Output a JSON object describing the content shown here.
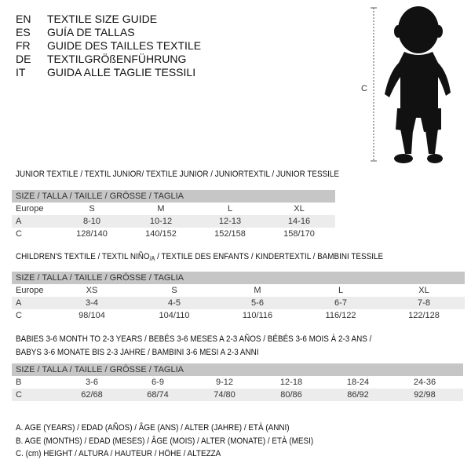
{
  "languages": [
    {
      "code": "EN",
      "name": "TEXTILE SIZE GUIDE"
    },
    {
      "code": "ES",
      "name": "GUÍA DE TALLAS"
    },
    {
      "code": "FR",
      "name": "GUIDE DES TAILLES TEXTILE"
    },
    {
      "code": "DE",
      "name": "TEXTILGRÖßENFÜHRUNG"
    },
    {
      "code": "IT",
      "name": "GUIDA ALLE TAGLIE TESSILI"
    }
  ],
  "figure": {
    "measure_label": "C",
    "icon": "toddler-silhouette"
  },
  "size_header": "SIZE / TALLA / TAILLE / GRÖSSE / TAGLIA",
  "junior": {
    "title": "JUNIOR TEXTILE / TEXTIL JUNIOR/ TEXTILE JUNIOR / JUNIORTEXTIL / JUNIOR TESSILE",
    "rows": [
      {
        "label": "Europe",
        "values": [
          "S",
          "M",
          "L",
          "XL"
        ]
      },
      {
        "label": "A",
        "values": [
          "8-10",
          "10-12",
          "12-13",
          "14-16"
        ]
      },
      {
        "label": "C",
        "values": [
          "128/140",
          "140/152",
          "152/158",
          "158/170"
        ]
      }
    ]
  },
  "children": {
    "title_a": "CHILDREN'S TEXTILE / TEXTIL NIÑO",
    "title_sub": "/A",
    "title_b": " / TEXTILE DES ENFANTS / KINDERTEXTIL / BAMBINI TESSILE",
    "rows": [
      {
        "label": "Europe",
        "values": [
          "XS",
          "S",
          "M",
          "L",
          "XL"
        ]
      },
      {
        "label": "A",
        "values": [
          "3-4",
          "4-5",
          "5-6",
          "6-7",
          "7-8"
        ]
      },
      {
        "label": "C",
        "values": [
          "98/104",
          "104/110",
          "110/116",
          "116/122",
          "122/128"
        ]
      }
    ]
  },
  "babies": {
    "title_line1": "BABIES 3-6 MONTH TO 2-3 YEARS / BEBÉS 3-6 MESES A 2-3 AÑOS / BÉBÉS 3-6 MOIS À 2-3 ANS /",
    "title_line2": "BABYS 3-6 MONATE BIS 2-3 JAHRE / BAMBINI 3-6 MESI A 2-3 ANNI",
    "rows": [
      {
        "label": "B",
        "values": [
          "3-6",
          "6-9",
          "9-12",
          "12-18",
          "18-24",
          "24-36"
        ]
      },
      {
        "label": "C",
        "values": [
          "62/68",
          "68/74",
          "74/80",
          "80/86",
          "86/92",
          "92/98"
        ]
      }
    ]
  },
  "legend": [
    "A. AGE (YEARS) / EDAD (AÑOS) / ÂGE (ANS) / ALTER (JAHRE) / ETÀ (ANNI)",
    "B. AGE (MONTHS) / EDAD (MESES) / ÂGE (MOIS) / ALTER (MONATE) / ETÀ (MESI)",
    "C. (cm) HEIGHT / ALTURA / HAUTEUR / HÖHE / ALTEZZA"
  ]
}
